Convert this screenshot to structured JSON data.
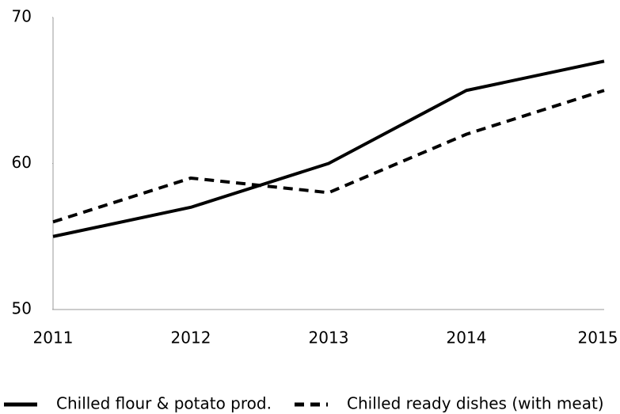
{
  "chart_data": {
    "type": "line",
    "categories": [
      "2011",
      "2012",
      "2013",
      "2014",
      "2015"
    ],
    "series": [
      {
        "name": "Chilled flour & potato prod.",
        "color": "#000000",
        "style": "solid",
        "values": [
          55,
          57,
          60,
          65,
          67
        ]
      },
      {
        "name": "Chilled ready dishes (with meat)",
        "color": "#000000",
        "style": "dashed",
        "values": [
          56,
          59,
          58,
          62,
          65
        ]
      }
    ],
    "ylim": [
      50,
      70
    ],
    "yticks": [
      50,
      60,
      70
    ],
    "grid": false,
    "legend": "bottom"
  }
}
